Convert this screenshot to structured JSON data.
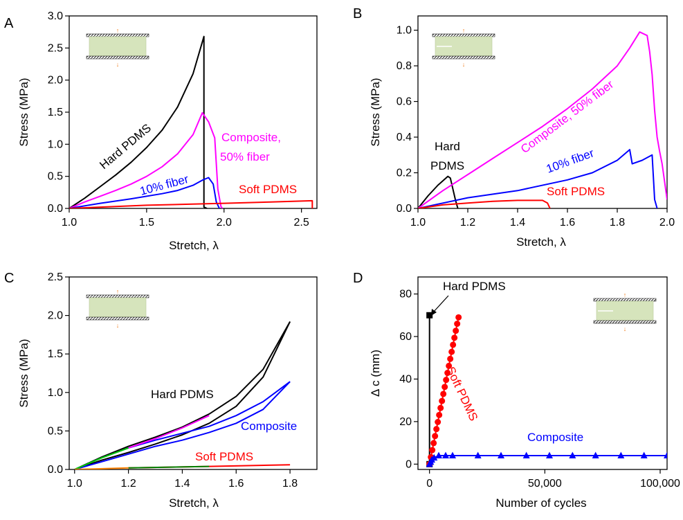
{
  "chart_data": [
    {
      "panel": "A",
      "type": "line",
      "xlabel": "Stretch, λ",
      "ylabel": "Stress (MPa)",
      "xlim": [
        1.0,
        2.6
      ],
      "ylim": [
        0.0,
        3.0
      ],
      "xticks": [
        "1.0",
        "1.5",
        "2.0",
        "2.5"
      ],
      "yticks": [
        "0.0",
        "0.5",
        "1.0",
        "1.5",
        "2.0",
        "2.5",
        "3.0"
      ],
      "series": [
        {
          "color": "#000000",
          "x": [
            1.0,
            1.1,
            1.2,
            1.3,
            1.4,
            1.5,
            1.6,
            1.7,
            1.8,
            1.87,
            1.87,
            1.89
          ],
          "y": [
            0,
            0.16,
            0.34,
            0.52,
            0.72,
            0.95,
            1.22,
            1.58,
            2.1,
            2.68,
            0.02,
            0
          ]
        },
        {
          "color": "#ff00ff",
          "x": [
            1.0,
            1.1,
            1.2,
            1.3,
            1.4,
            1.5,
            1.6,
            1.7,
            1.8,
            1.86,
            1.88,
            1.9,
            1.94,
            1.96,
            1.98,
            1.99
          ],
          "y": [
            0,
            0.1,
            0.19,
            0.28,
            0.38,
            0.5,
            0.65,
            0.85,
            1.15,
            1.49,
            1.42,
            1.35,
            1.1,
            0.3,
            0.03,
            0
          ]
        },
        {
          "color": "#0000ff",
          "x": [
            1.0,
            1.2,
            1.4,
            1.6,
            1.7,
            1.8,
            1.86,
            1.9,
            1.93,
            1.95,
            1.97
          ],
          "y": [
            0,
            0.08,
            0.15,
            0.23,
            0.28,
            0.36,
            0.44,
            0.48,
            0.38,
            0.1,
            0
          ]
        },
        {
          "color": "#ff0000",
          "x": [
            1.0,
            1.5,
            2.0,
            2.3,
            2.57,
            2.57
          ],
          "y": [
            0,
            0.05,
            0.08,
            0.1,
            0.12,
            0
          ]
        }
      ],
      "annotations": [
        {
          "text": "Hard PDMS",
          "color": "#000000"
        },
        {
          "text": "Composite,",
          "color": "#ff00ff"
        },
        {
          "text": "50% fiber",
          "color": "#ff00ff"
        },
        {
          "text": "10% fiber",
          "color": "#0000ff"
        },
        {
          "text": "Soft PDMS",
          "color": "#ff0000"
        }
      ]
    },
    {
      "panel": "B",
      "type": "line",
      "xlabel": "Stretch, λ",
      "ylabel": "Stress (MPa)",
      "xlim": [
        1.0,
        2.0
      ],
      "ylim": [
        0.0,
        1.08
      ],
      "xticks": [
        "1.0",
        "1.2",
        "1.4",
        "1.6",
        "1.8",
        "2.0"
      ],
      "yticks": [
        "0.0",
        "0.2",
        "0.4",
        "0.6",
        "0.8",
        "1.0"
      ],
      "series": [
        {
          "color": "#000000",
          "x": [
            1.0,
            1.04,
            1.08,
            1.12,
            1.13,
            1.15,
            1.16
          ],
          "y": [
            0,
            0.07,
            0.13,
            0.18,
            0.17,
            0.05,
            0
          ]
        },
        {
          "color": "#ff00ff",
          "x": [
            1.0,
            1.1,
            1.2,
            1.3,
            1.4,
            1.5,
            1.6,
            1.7,
            1.8,
            1.85,
            1.89,
            1.92,
            1.93,
            1.94,
            1.95,
            1.96,
            1.97,
            1.98,
            1.99,
            2.0
          ],
          "y": [
            0,
            0.1,
            0.19,
            0.28,
            0.37,
            0.46,
            0.56,
            0.67,
            0.8,
            0.9,
            0.99,
            0.97,
            0.88,
            0.75,
            0.55,
            0.4,
            0.32,
            0.25,
            0.15,
            0.05
          ]
        },
        {
          "color": "#0000ff",
          "x": [
            1.0,
            1.2,
            1.4,
            1.6,
            1.7,
            1.8,
            1.85,
            1.86,
            1.9,
            1.94,
            1.95,
            1.96
          ],
          "y": [
            0,
            0.06,
            0.1,
            0.16,
            0.2,
            0.27,
            0.33,
            0.25,
            0.27,
            0.3,
            0.05,
            0
          ]
        },
        {
          "color": "#ff0000",
          "x": [
            1.0,
            1.1,
            1.2,
            1.3,
            1.4,
            1.5,
            1.52,
            1.53
          ],
          "y": [
            0,
            0.02,
            0.03,
            0.04,
            0.045,
            0.045,
            0.03,
            0
          ]
        }
      ],
      "annotations": [
        {
          "text": "Hard",
          "color": "#000000"
        },
        {
          "text": "PDMS",
          "color": "#000000"
        },
        {
          "text": "Composite, 50% fiber",
          "color": "#ff00ff"
        },
        {
          "text": "10% fiber",
          "color": "#0000ff"
        },
        {
          "text": "Soft PDMS",
          "color": "#ff0000"
        }
      ]
    },
    {
      "panel": "C",
      "type": "line",
      "xlabel": "Stretch, λ",
      "ylabel": "Stress (MPa)",
      "xlim": [
        0.98,
        1.9
      ],
      "ylim": [
        0.0,
        2.5
      ],
      "xticks": [
        "1.0",
        "1.2",
        "1.4",
        "1.6",
        "1.8"
      ],
      "yticks": [
        "0.0",
        "0.5",
        "1.0",
        "1.5",
        "2.0",
        "2.5"
      ],
      "series": [
        {
          "color": "#000000",
          "x": [
            1.0,
            1.1,
            1.2,
            1.3,
            1.4,
            1.5,
            1.6,
            1.7,
            1.8
          ],
          "y": [
            0,
            0.16,
            0.3,
            0.42,
            0.55,
            0.72,
            0.95,
            1.3,
            1.92
          ]
        },
        {
          "color": "#000000",
          "x": [
            1.8,
            1.7,
            1.6,
            1.5,
            1.4,
            1.3,
            1.2,
            1.1,
            1.0
          ],
          "y": [
            1.92,
            1.2,
            0.82,
            0.6,
            0.45,
            0.33,
            0.22,
            0.12,
            0
          ]
        },
        {
          "color": "#0000ff",
          "x": [
            1.0,
            1.1,
            1.2,
            1.3,
            1.4,
            1.5,
            1.6,
            1.7,
            1.8
          ],
          "y": [
            0,
            0.15,
            0.28,
            0.38,
            0.47,
            0.56,
            0.7,
            0.88,
            1.14
          ]
        },
        {
          "color": "#0000ff",
          "x": [
            1.8,
            1.7,
            1.6,
            1.5,
            1.4,
            1.3,
            1.2,
            1.1,
            1.0
          ],
          "y": [
            1.14,
            0.78,
            0.6,
            0.48,
            0.38,
            0.3,
            0.2,
            0.1,
            0
          ]
        },
        {
          "color": "#ff00ff",
          "x": [
            1.2,
            1.3,
            1.4,
            1.5
          ],
          "y": [
            0.28,
            0.4,
            0.54,
            0.7
          ]
        },
        {
          "color": "#00cc00",
          "x": [
            1.0,
            1.1,
            1.2
          ],
          "y": [
            0,
            0.15,
            0.28
          ]
        },
        {
          "color": "#ff0000",
          "x": [
            1.2,
            1.5,
            1.8
          ],
          "y": [
            0.02,
            0.04,
            0.06
          ]
        },
        {
          "color": "#008000",
          "x": [
            1.2,
            1.5
          ],
          "y": [
            0.02,
            0.04
          ]
        },
        {
          "color": "#ff8000",
          "x": [
            1.0,
            1.2
          ],
          "y": [
            0,
            0.02
          ]
        }
      ],
      "annotations": [
        {
          "text": "Hard PDMS",
          "color": "#000000"
        },
        {
          "text": "Composite",
          "color": "#0000ff"
        },
        {
          "text": "Soft PDMS",
          "color": "#ff0000"
        }
      ]
    },
    {
      "panel": "D",
      "type": "scatter",
      "xlabel": "Number of cycles",
      "ylabel": "Δ c (mm)",
      "xlim": [
        -5000,
        103000
      ],
      "ylim": [
        -2.5,
        88
      ],
      "xticks": [
        "0",
        "50,000",
        "100,000"
      ],
      "yticks": [
        "0",
        "20",
        "40",
        "60",
        "80"
      ],
      "series": [
        {
          "color": "#000000",
          "marker": "square",
          "x": [
            0,
            0
          ],
          "y": [
            0,
            70
          ]
        },
        {
          "color": "#ff0000",
          "marker": "circle",
          "x": [
            0,
            600,
            1200,
            1800,
            2400,
            3000,
            3600,
            4200,
            4800,
            5400,
            6000,
            6600,
            7200,
            7800,
            8400,
            9000,
            9600,
            10200,
            10800,
            11400,
            12000,
            12600
          ],
          "y": [
            0,
            3.3,
            6.6,
            9.9,
            13.2,
            16.5,
            19.8,
            23.1,
            26.4,
            29.7,
            33,
            36.3,
            39.6,
            42.9,
            46.2,
            49.5,
            52.8,
            56.1,
            59.4,
            62.7,
            66,
            69
          ]
        },
        {
          "color": "#0000ff",
          "marker": "triangle",
          "x": [
            0,
            500,
            1000,
            2000,
            4000,
            7000,
            10000,
            21000,
            31000,
            42000,
            52000,
            62000,
            72000,
            83000,
            93000,
            103000
          ],
          "y": [
            0,
            1,
            2,
            3,
            4,
            4,
            4,
            4,
            4,
            4,
            4,
            4,
            4,
            4,
            4,
            4
          ]
        }
      ],
      "annotations": [
        {
          "text": "Hard PDMS",
          "color": "#000000"
        },
        {
          "text": "Soft PDMS",
          "color": "#ff0000"
        },
        {
          "text": "Composite",
          "color": "#0000ff"
        }
      ]
    }
  ]
}
